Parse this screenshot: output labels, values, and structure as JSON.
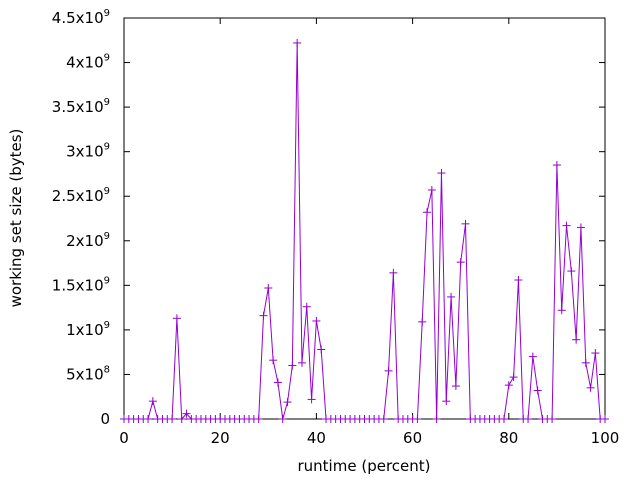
{
  "chart_data": {
    "type": "line",
    "xlabel": "runtime (percent)",
    "ylabel": "working set size (bytes)",
    "xlim": [
      0,
      100
    ],
    "ylim": [
      0,
      4500000000
    ],
    "x_ticks": [
      {
        "value": 0,
        "label": "0"
      },
      {
        "value": 20,
        "label": "20"
      },
      {
        "value": 40,
        "label": "40"
      },
      {
        "value": 60,
        "label": "60"
      },
      {
        "value": 80,
        "label": "80"
      },
      {
        "value": 100,
        "label": "100"
      }
    ],
    "y_ticks": [
      {
        "value": 0,
        "mantissa": "0",
        "exponent": ""
      },
      {
        "value": 500000000,
        "mantissa": "5x10",
        "exponent": "8"
      },
      {
        "value": 1000000000,
        "mantissa": "1x10",
        "exponent": "9"
      },
      {
        "value": 1500000000,
        "mantissa": "1.5x10",
        "exponent": "9"
      },
      {
        "value": 2000000000,
        "mantissa": "2x10",
        "exponent": "9"
      },
      {
        "value": 2500000000,
        "mantissa": "2.5x10",
        "exponent": "9"
      },
      {
        "value": 3000000000,
        "mantissa": "3x10",
        "exponent": "9"
      },
      {
        "value": 3500000000,
        "mantissa": "3.5x10",
        "exponent": "9"
      },
      {
        "value": 4000000000,
        "mantissa": "4x10",
        "exponent": "9"
      },
      {
        "value": 4500000000,
        "mantissa": "4.5x10",
        "exponent": "9"
      }
    ],
    "grid": false,
    "line_color": "#9400d3",
    "marker": "plus",
    "series": [
      {
        "x": [
          0,
          1,
          2,
          3,
          4,
          5,
          6,
          7,
          8,
          9,
          10,
          11,
          12,
          13,
          14,
          15,
          16,
          17,
          18,
          19,
          20,
          21,
          22,
          23,
          24,
          25,
          26,
          27,
          28,
          29,
          30,
          31,
          32,
          33,
          34,
          35,
          36,
          37,
          38,
          39,
          40,
          41,
          42,
          43,
          44,
          45,
          46,
          47,
          48,
          49,
          50,
          51,
          52,
          53,
          54,
          55,
          56,
          57,
          58,
          59,
          60,
          61,
          62,
          63,
          64,
          65,
          66,
          67,
          68,
          69,
          70,
          71,
          72,
          73,
          74,
          75,
          76,
          77,
          78,
          79,
          80,
          81,
          82,
          83,
          84,
          85,
          86,
          87,
          88,
          89,
          90,
          91,
          92,
          93,
          94,
          95,
          96,
          97,
          98,
          99,
          100
        ],
        "y": [
          0,
          0,
          0,
          0,
          0,
          0,
          200000000,
          0,
          0,
          0,
          0,
          1130000000,
          0,
          60000000,
          0,
          0,
          0,
          0,
          0,
          0,
          0,
          0,
          0,
          0,
          0,
          0,
          0,
          0,
          0,
          1160000000,
          1470000000,
          660000000,
          410000000,
          0,
          190000000,
          600000000,
          4220000000,
          630000000,
          1260000000,
          220000000,
          1100000000,
          780000000,
          0,
          0,
          0,
          0,
          0,
          0,
          0,
          0,
          0,
          0,
          0,
          0,
          0,
          540000000,
          1640000000,
          0,
          0,
          0,
          0,
          0,
          1090000000,
          2320000000,
          2570000000,
          0,
          2760000000,
          200000000,
          1370000000,
          370000000,
          1760000000,
          2190000000,
          0,
          0,
          0,
          0,
          0,
          0,
          0,
          0,
          380000000,
          470000000,
          1560000000,
          0,
          0,
          700000000,
          320000000,
          0,
          0,
          0,
          2850000000,
          1220000000,
          2170000000,
          1660000000,
          890000000,
          2150000000,
          630000000,
          350000000,
          740000000,
          0,
          0
        ]
      }
    ]
  }
}
